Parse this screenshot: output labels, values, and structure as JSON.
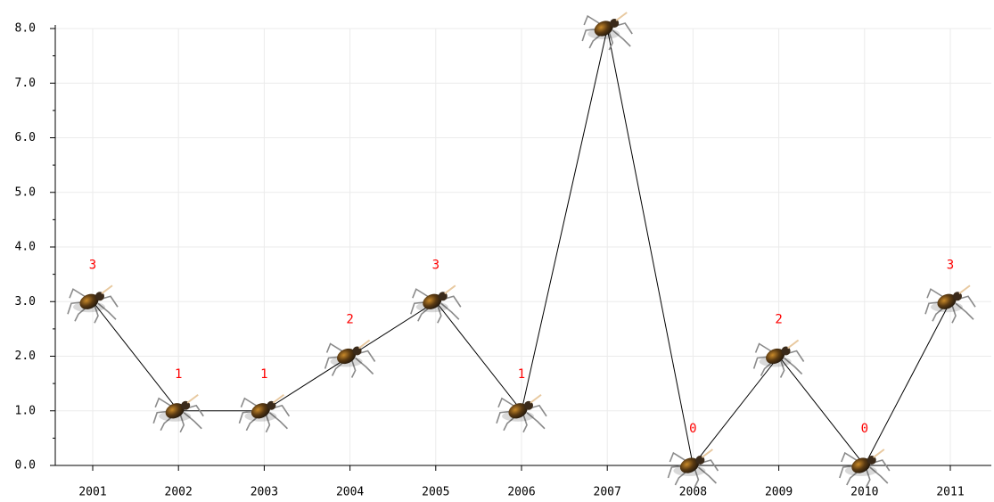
{
  "chart_data": {
    "type": "line",
    "categories": [
      "2001",
      "2002",
      "2003",
      "2004",
      "2005",
      "2006",
      "2007",
      "2008",
      "2009",
      "2010",
      "2011"
    ],
    "values": [
      3,
      1,
      1,
      2,
      3,
      1,
      8,
      0,
      2,
      0,
      3
    ],
    "color": "#000000",
    "label_color": "#ff0000",
    "ylim": [
      0,
      8
    ],
    "yticks": [
      {
        "value": 0,
        "label": "0.0"
      },
      {
        "value": 1,
        "label": "1.0"
      },
      {
        "value": 2,
        "label": "2.0"
      },
      {
        "value": 3,
        "label": "3.0"
      },
      {
        "value": 4,
        "label": "4.0"
      },
      {
        "value": 5,
        "label": "5.0"
      },
      {
        "value": 6,
        "label": "6.0"
      },
      {
        "value": 7,
        "label": "7.0"
      },
      {
        "value": 8,
        "label": "8.0"
      }
    ],
    "grid": true
  }
}
